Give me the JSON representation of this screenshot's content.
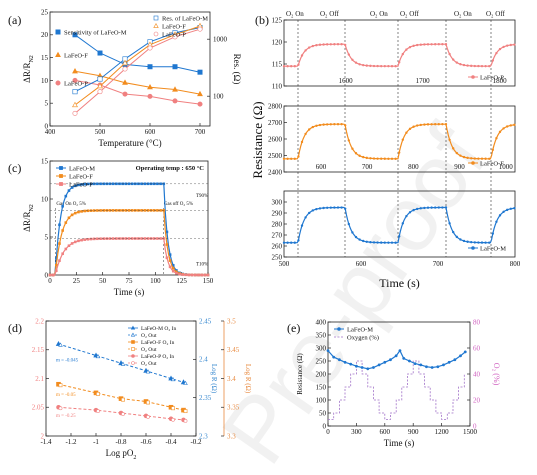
{
  "colors": {
    "M": "#1f77d0",
    "F": "#f28c1e",
    "P": "#f08080",
    "logR": "#e88a40",
    "oxy": "#a070c8",
    "axR": "#3a8ad0",
    "axP": "#d060c0"
  },
  "watermark": "Pre-proof",
  "chart_data": [
    {
      "id": "a",
      "panel_label": "(a)",
      "type": "line",
      "xlabel": "Temperature (°C)",
      "ylabel": "ΔR/R",
      "ylabel_sub": "N2",
      "y2label": "Res. (Ω)",
      "xlim": [
        400,
        720
      ],
      "ylim": [
        0,
        25
      ],
      "xticks": [
        400,
        500,
        600,
        700
      ],
      "yticks": [
        0,
        5,
        10,
        15,
        20,
        25
      ],
      "y2lim": [
        30,
        3000
      ],
      "y2scale": "log",
      "y2ticks": [
        100,
        1000
      ],
      "legend_left": [
        "Sensitivity of LaFeO-M",
        "LaFeO-F",
        "LaFeO-P"
      ],
      "legend_right": [
        "Res. of LaFeO-M",
        "LaFeO-F",
        "LaFeO-P"
      ],
      "x": [
        450,
        500,
        550,
        600,
        650,
        700
      ],
      "sensitivity": [
        {
          "name": "LaFeO-M",
          "values": [
            20,
            16,
            13.5,
            13,
            13,
            11.8
          ]
        },
        {
          "name": "LaFeO-F",
          "values": [
            12,
            11,
            9.5,
            8.5,
            8,
            7
          ]
        },
        {
          "name": "LaFeO-P",
          "values": [
            10,
            9,
            7,
            6.5,
            5.5,
            4.8
          ]
        }
      ],
      "resistance": [
        {
          "name": "LaFeO-M",
          "values": [
            120,
            200,
            450,
            900,
            1300,
            1600
          ]
        },
        {
          "name": "LaFeO-F",
          "values": [
            70,
            150,
            380,
            800,
            1200,
            1700
          ]
        },
        {
          "name": "LaFeO-P",
          "values": [
            50,
            120,
            300,
            700,
            1100,
            1500
          ]
        }
      ]
    },
    {
      "id": "b",
      "panel_label": "(b)",
      "type": "line",
      "xlabel": "Time (s)",
      "ylabel": "Resistance (Ω)",
      "phase_labels": [
        "O₂ On",
        "O₂ Off",
        "O₂ On",
        "O₂ Off",
        "O₂ On",
        "O₂ Off"
      ],
      "panels": [
        {
          "name": "LaFeO-P",
          "xlim": [
            1520,
            1820
          ],
          "xticks": [
            1600,
            1700,
            1800
          ],
          "ylim": [
            110,
            125
          ],
          "yticks": [
            110,
            115,
            120,
            125
          ],
          "low": 114.5,
          "high": 119.5
        },
        {
          "name": "LaFeO-F",
          "xlim": [
            520,
            1020
          ],
          "xticks": [
            600,
            700,
            800,
            900,
            1000
          ],
          "ylim": [
            2400,
            2800
          ],
          "yticks": [
            2400,
            2500,
            2600,
            2700,
            2800
          ],
          "low": 2480,
          "high": 2690
        },
        {
          "name": "LaFeO-M",
          "xlim": [
            500,
            800
          ],
          "xticks": [
            500,
            600,
            700,
            800
          ],
          "ylim": [
            250,
            310
          ],
          "yticks": [
            250,
            260,
            270,
            280,
            290,
            300
          ],
          "low": 263,
          "high": 295
        }
      ]
    },
    {
      "id": "c",
      "panel_label": "(c)",
      "type": "line",
      "xlabel": "Time (s)",
      "ylabel": "ΔR/R",
      "ylabel_sub": "N2",
      "xlim": [
        0,
        150
      ],
      "xticks": [
        0,
        25,
        50,
        75,
        100,
        125,
        150
      ],
      "ylim": [
        0,
        15
      ],
      "yticks": [
        0,
        5,
        10,
        15
      ],
      "annotation": "Operating temp : 650 °C",
      "gas_on": "Gas On O₂ 5%",
      "gas_off": "Gas off O₂ 5%",
      "t90": "T90%",
      "t10": "T10%",
      "legend": [
        "LaFeO-M",
        "LaFeO-F",
        "LaFeO-P"
      ],
      "on_time": 5,
      "off_time": 108,
      "series": [
        {
          "name": "LaFeO-M",
          "plateau": 12,
          "tau": 5
        },
        {
          "name": "LaFeO-F",
          "plateau": 8.5,
          "tau": 6
        },
        {
          "name": "LaFeO-P",
          "plateau": 4.8,
          "tau": 8
        }
      ]
    },
    {
      "id": "d",
      "panel_label": "(d)",
      "type": "scatter",
      "xlabel": "Log pO",
      "xlabel_sub": "2",
      "ylabel": "Log R (Ω)",
      "y2label": "Log R (Ω)",
      "xlim": [
        -1.4,
        -0.2
      ],
      "xticks": [
        -1.4,
        -1.2,
        -1.0,
        -0.8,
        -0.6,
        -0.4,
        -0.2
      ],
      "ylim_left": [
        2.0,
        2.2
      ],
      "yticks_left": [
        2.0,
        2.05,
        2.1,
        2.15,
        2.2
      ],
      "ylim_mid": [
        2.3,
        2.45
      ],
      "yticks_mid": [
        2.3,
        2.35,
        2.4,
        2.45
      ],
      "ylim_right": [
        3.3,
        3.5
      ],
      "yticks_right": [
        3.3,
        3.35,
        3.4,
        3.45,
        3.5
      ],
      "legend": [
        "LaFeO-M O₂ In",
        "O₂ Out",
        "LaFeO-F O₂ In",
        "O₂ Out",
        "LaFeO-P O₂ In",
        "O₂ Out"
      ],
      "slopes": [
        "m = -0.045",
        "m = -0.05",
        "m = -0.25"
      ],
      "x": [
        -1.3,
        -1.0,
        -0.8,
        -0.6,
        -0.4,
        -0.3
      ],
      "series": [
        {
          "name": "LaFeO-M",
          "axis": "mid",
          "values": [
            2.42,
            2.405,
            2.395,
            2.385,
            2.375,
            2.37
          ]
        },
        {
          "name": "LaFeO-F",
          "axis": "right",
          "values": [
            3.39,
            3.375,
            3.365,
            3.36,
            3.35,
            3.345
          ]
        },
        {
          "name": "LaFeO-P",
          "axis": "left",
          "values": [
            2.05,
            2.045,
            2.04,
            2.035,
            2.03,
            2.028
          ]
        }
      ]
    },
    {
      "id": "e",
      "panel_label": "(e)",
      "type": "line",
      "xlabel": "Time (s)",
      "ylabel": "Resistance (Ω)",
      "y2label": "O₂ (%)",
      "xlim": [
        0,
        1500
      ],
      "xticks": [
        0,
        300,
        600,
        900,
        1200,
        1500
      ],
      "ylim": [
        0,
        400
      ],
      "yticks": [
        0,
        50,
        100,
        150,
        200,
        250,
        300,
        350,
        400
      ],
      "y2lim": [
        0,
        80
      ],
      "y2ticks": [
        0,
        20,
        40,
        60,
        80
      ],
      "legend": [
        "LaFeO-M",
        "Oxygen (%)"
      ],
      "res_t": [
        0,
        60,
        120,
        180,
        240,
        300,
        360,
        420,
        480,
        540,
        600,
        660,
        720,
        760,
        800,
        860,
        920,
        980,
        1040,
        1100,
        1160,
        1220,
        1280,
        1340,
        1400,
        1450
      ],
      "res_v": [
        290,
        265,
        255,
        245,
        238,
        230,
        225,
        220,
        225,
        235,
        245,
        255,
        270,
        290,
        260,
        250,
        240,
        235,
        228,
        225,
        228,
        235,
        245,
        255,
        270,
        285
      ],
      "oxy_t": [
        0,
        60,
        120,
        180,
        240,
        300,
        360,
        420,
        480,
        540,
        600,
        660,
        720,
        780,
        840,
        900,
        960,
        1020,
        1080,
        1140,
        1200,
        1260,
        1320,
        1380,
        1440
      ],
      "oxy_v": [
        5,
        10,
        20,
        30,
        40,
        50,
        40,
        30,
        20,
        10,
        5,
        10,
        20,
        30,
        40,
        50,
        40,
        30,
        20,
        10,
        5,
        10,
        20,
        30,
        40
      ]
    }
  ]
}
